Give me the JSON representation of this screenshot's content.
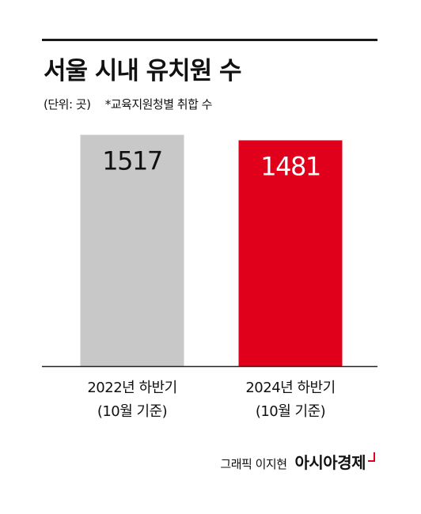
{
  "chart_data": {
    "type": "bar",
    "title": "서울 시내 유치원 수",
    "unit_note": "(단위: 곳)",
    "source_note": "*교육지원청별 취합 수",
    "categories": [
      "2022년 하반기",
      "2024년 하반기"
    ],
    "category_notes": [
      "(10월 기준)",
      "(10월 기준)"
    ],
    "values": [
      1517,
      1481
    ],
    "bar_colors": [
      "#c8c8c8",
      "#e0001b"
    ],
    "label_colors": [
      "#111111",
      "#ffffff"
    ],
    "ylim": [
      0,
      1530
    ]
  },
  "footer": {
    "credit": "그래픽 이지현",
    "logo": "아시아경제",
    "logo_color": "#e0001b"
  }
}
